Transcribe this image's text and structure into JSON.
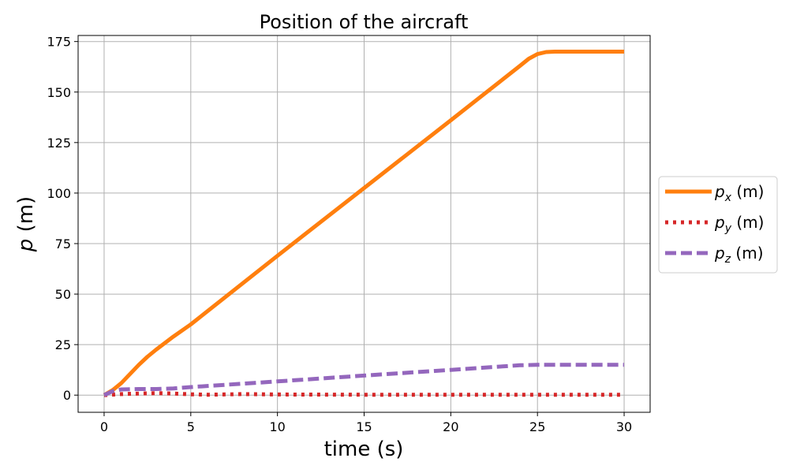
{
  "chart_data": {
    "type": "line",
    "title": "Position of the aircraft",
    "xlabel": "time (s)",
    "ylabel": "p (m)",
    "xlim": [
      -1.5,
      31.5
    ],
    "ylim": [
      -8.5,
      178
    ],
    "xticks": [
      0,
      5,
      10,
      15,
      20,
      25,
      30
    ],
    "yticks": [
      0,
      25,
      50,
      75,
      100,
      125,
      150,
      175
    ],
    "grid": true,
    "legend_position": "center-right-outside",
    "series": [
      {
        "name": "p_x (m)",
        "label_base": "p",
        "label_sub": "x",
        "label_unit": " (m)",
        "color": "#ff7f0e",
        "style": "solid",
        "x": [
          0,
          0.5,
          1,
          1.5,
          2,
          2.5,
          3,
          4,
          5,
          10,
          15,
          20,
          24,
          24.5,
          25,
          25.5,
          26,
          30
        ],
        "y": [
          0,
          2.5,
          6,
          10.5,
          15,
          19,
          22.5,
          29,
          35,
          69,
          102.5,
          136,
          163,
          166.5,
          168.8,
          169.8,
          170,
          170
        ]
      },
      {
        "name": "p_y (m)",
        "label_base": "p",
        "label_sub": "y",
        "label_unit": " (m)",
        "color": "#d62728",
        "style": "dotted",
        "x": [
          0,
          1,
          2,
          3,
          4,
          5,
          6,
          8,
          10,
          15,
          20,
          25,
          30
        ],
        "y": [
          0,
          0.5,
          0.8,
          1,
          0.8,
          0.4,
          0.2,
          0.5,
          0.3,
          0.2,
          0.2,
          0.2,
          0.2
        ]
      },
      {
        "name": "p_z (m)",
        "label_base": "p",
        "label_sub": "z",
        "label_unit": " (m)",
        "color": "#9467bd",
        "style": "dashed",
        "x": [
          0,
          0.5,
          1,
          2,
          3,
          4,
          5,
          10,
          15,
          20,
          24,
          25,
          30
        ],
        "y": [
          0,
          2,
          2.8,
          3,
          3,
          3.3,
          4,
          6.8,
          9.7,
          12.5,
          14.8,
          15,
          15
        ]
      }
    ]
  }
}
